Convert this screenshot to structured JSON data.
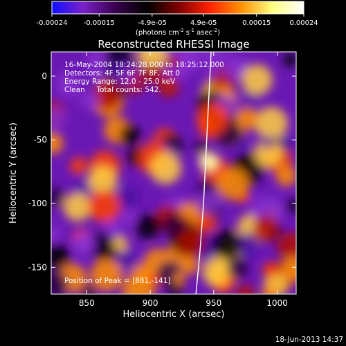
{
  "chart_data": {
    "type": "heatmap",
    "title": "Reconstructed RHESSI Image",
    "xlabel": "Heliocentric X (arcsec)",
    "ylabel": "Heliocentric Y (arcsec)",
    "xlim": [
      822,
      1015
    ],
    "ylim": [
      -171,
      19
    ],
    "x_ticks": [
      850,
      900,
      950,
      1000
    ],
    "y_ticks": [
      0,
      -50,
      -100,
      -150
    ],
    "x_tick_labels": [
      "850",
      "900",
      "950",
      "1000"
    ],
    "y_tick_labels": [
      "0",
      "-50",
      "-100",
      "-150"
    ],
    "colorbar": {
      "min": -0.00024,
      "max": 0.00024,
      "ticks": [
        -0.00024,
        -0.00015,
        -4.9e-05,
        4.9e-05,
        0.00015,
        0.00024
      ],
      "tick_labels": [
        "-0.00024",
        "-0.00015",
        "-4.9e-05",
        "4.9e-05",
        "0.00015",
        "0.00024"
      ],
      "units_label": "(photons cm-2 s-1 asec-2)",
      "colors": [
        "#1010ff",
        "#7a20c8",
        "#3a0050",
        "#000000",
        "#7a0000",
        "#ff2000",
        "#ff9000",
        "#ffff80",
        "#ffffff"
      ]
    },
    "annotations": [
      "16-May-2004 18:24:28.000 to 18:25:12.000",
      "Detectors: 4F 5F 6F 7F 8F, Att 0",
      "Energy Range: 12.0 - 25.0 keV",
      "Clean     Total counts: 542.",
      "Position of Peak = [881,-141]"
    ],
    "peak": {
      "x": 881,
      "y": -141
    },
    "limb_curve": {
      "x": [
        936,
        939,
        942,
        944,
        946,
        948
      ],
      "y": [
        -171,
        -140,
        -100,
        -60,
        -20,
        19
      ]
    },
    "grid": false
  },
  "footer": {
    "date": "18-Jun-2013 14:37"
  }
}
